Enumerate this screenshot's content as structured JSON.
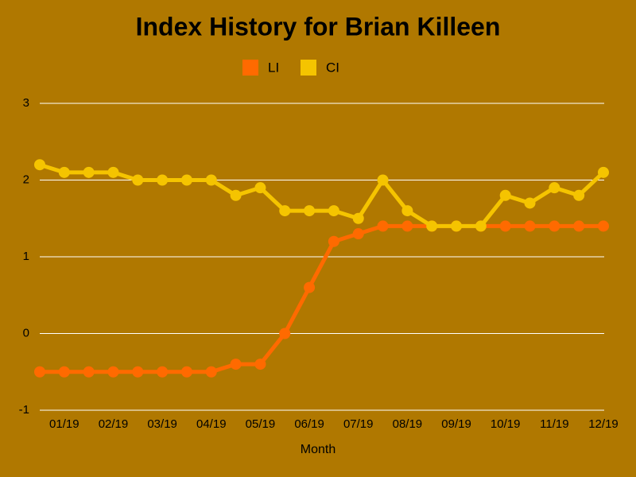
{
  "chart_data": {
    "type": "line",
    "title": "Index History for Brian Killeen",
    "x_label": "Month",
    "categories": [
      null,
      "01/19",
      null,
      "02/19",
      null,
      "03/19",
      null,
      "04/19",
      null,
      "05/19",
      null,
      "06/19",
      null,
      "07/19",
      null,
      "08/19",
      null,
      "09/19",
      null,
      "10/19",
      null,
      "11/19",
      null,
      "12/19"
    ],
    "series": [
      {
        "name": "LI",
        "color": "#ff6a00",
        "values": [
          -0.5,
          -0.5,
          -0.5,
          -0.5,
          -0.5,
          -0.5,
          -0.5,
          -0.5,
          -0.4,
          -0.4,
          0,
          0.6,
          1.2,
          1.3,
          1.4,
          1.4,
          1.4,
          1.4,
          1.4,
          1.4,
          1.4,
          1.4,
          1.4,
          1.4
        ]
      },
      {
        "name": "CI",
        "color": "#f5c400",
        "values": [
          2.2,
          2.1,
          2.1,
          2.1,
          2.0,
          2.0,
          2.0,
          2.0,
          1.8,
          1.9,
          1.6,
          1.6,
          1.6,
          1.5,
          2.0,
          1.6,
          1.4,
          1.4,
          1.4,
          1.8,
          1.7,
          1.9,
          1.8,
          2.1
        ]
      }
    ],
    "ylim": [
      -1,
      3
    ],
    "yticks": [
      -1,
      0,
      1,
      2,
      3
    ],
    "grid": true,
    "legend": "top"
  }
}
